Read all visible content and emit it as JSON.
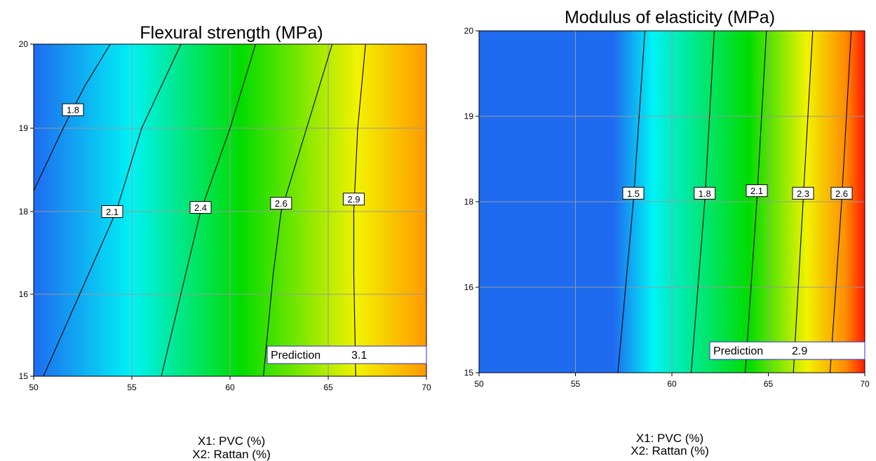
{
  "chart_data": [
    {
      "type": "contour",
      "title": "Flexural strength (MPa)",
      "xlabel": "X1: PVC (%)",
      "ylabel": "X2: Rattan (%)",
      "xlim": [
        50,
        70
      ],
      "ylim": [
        15,
        20
      ],
      "x_ticks": [
        "50",
        "55",
        "60",
        "65",
        "70"
      ],
      "y_ticks": [
        "15",
        "16",
        "18",
        "19",
        "20"
      ],
      "grid": true,
      "colormap": "blue-cyan-green-yellow-orange",
      "color_stops": [
        {
          "x": 50,
          "color": "#1e6bf0"
        },
        {
          "x": 55,
          "color": "#00f2f5"
        },
        {
          "x": 60.5,
          "color": "#00dc00"
        },
        {
          "x": 66.5,
          "color": "#f2f200"
        },
        {
          "x": 70,
          "color": "#ff9900"
        }
      ],
      "contours": [
        {
          "label": "1.8",
          "points": [
            [
              50,
              18.25
            ],
            [
              51.5,
              19.0
            ],
            [
              52.6,
              19.5
            ],
            [
              53.9,
              20
            ]
          ],
          "label_at": [
            52.0,
            19.22
          ]
        },
        {
          "label": "2.1",
          "points": [
            [
              50.5,
              15
            ],
            [
              54.2,
              18.0
            ],
            [
              55.5,
              19.0
            ],
            [
              57.5,
              20
            ]
          ],
          "label_at": [
            54.0,
            18.0
          ]
        },
        {
          "label": "2.4",
          "points": [
            [
              56.5,
              15
            ],
            [
              58.5,
              18.0
            ],
            [
              60.0,
              19.0
            ],
            [
              61.3,
              20
            ]
          ],
          "label_at": [
            58.5,
            18.05
          ]
        },
        {
          "label": "2.6",
          "points": [
            [
              61.7,
              15
            ],
            [
              62.2,
              16.5
            ],
            [
              62.6,
              18.0
            ],
            [
              63.9,
              19.0
            ],
            [
              65.2,
              20
            ]
          ],
          "label_at": [
            62.6,
            18.1
          ]
        },
        {
          "label": "2.9",
          "points": [
            [
              66.4,
              15
            ],
            [
              66.3,
              16.5
            ],
            [
              66.3,
              18.0
            ],
            [
              66.5,
              19.0
            ],
            [
              66.9,
              20
            ]
          ],
          "label_at": [
            66.3,
            18.15
          ]
        }
      ],
      "prediction": {
        "label": "Prediction",
        "value": "3.1"
      }
    },
    {
      "type": "contour",
      "title": "Modulus of elasticity (MPa)",
      "xlabel": "X1: PVC (%)",
      "ylabel": "X2: Rattan (%)",
      "xlim": [
        50,
        70
      ],
      "ylim": [
        15,
        20
      ],
      "x_ticks": [
        "50",
        "55",
        "60",
        "65",
        "70"
      ],
      "y_ticks": [
        "15",
        "16",
        "18",
        "19",
        "20"
      ],
      "grid": true,
      "colormap": "blue-cyan-green-yellow-red",
      "color_stops": [
        {
          "x": 50,
          "color": "#1e6bf0"
        },
        {
          "x": 57,
          "color": "#1e6bf0"
        },
        {
          "x": 59,
          "color": "#00f2f5"
        },
        {
          "x": 64,
          "color": "#00dc00"
        },
        {
          "x": 67,
          "color": "#f2f200"
        },
        {
          "x": 69,
          "color": "#ff8c00"
        },
        {
          "x": 70,
          "color": "#ff1a00"
        }
      ],
      "contours": [
        {
          "label": "1.5",
          "points": [
            [
              57.2,
              15
            ],
            [
              58.0,
              18.0
            ],
            [
              58.6,
              20
            ]
          ],
          "label_at": [
            58.0,
            18.1
          ]
        },
        {
          "label": "1.8",
          "points": [
            [
              61.0,
              15
            ],
            [
              61.7,
              18.0
            ],
            [
              62.2,
              20
            ]
          ],
          "label_at": [
            61.7,
            18.1
          ]
        },
        {
          "label": "2.1",
          "points": [
            [
              63.8,
              15
            ],
            [
              64.4,
              18.0
            ],
            [
              64.9,
              20
            ]
          ],
          "label_at": [
            64.4,
            18.13
          ]
        },
        {
          "label": "2.3",
          "points": [
            [
              66.3,
              15
            ],
            [
              66.8,
              18.0
            ],
            [
              67.3,
              20
            ]
          ],
          "label_at": [
            66.8,
            18.1
          ]
        },
        {
          "label": "2.6",
          "points": [
            [
              68.2,
              15
            ],
            [
              68.8,
              18.0
            ],
            [
              69.3,
              20
            ]
          ],
          "label_at": [
            68.8,
            18.1
          ]
        }
      ],
      "prediction": {
        "label": "Prediction",
        "value": "2.9"
      }
    }
  ]
}
